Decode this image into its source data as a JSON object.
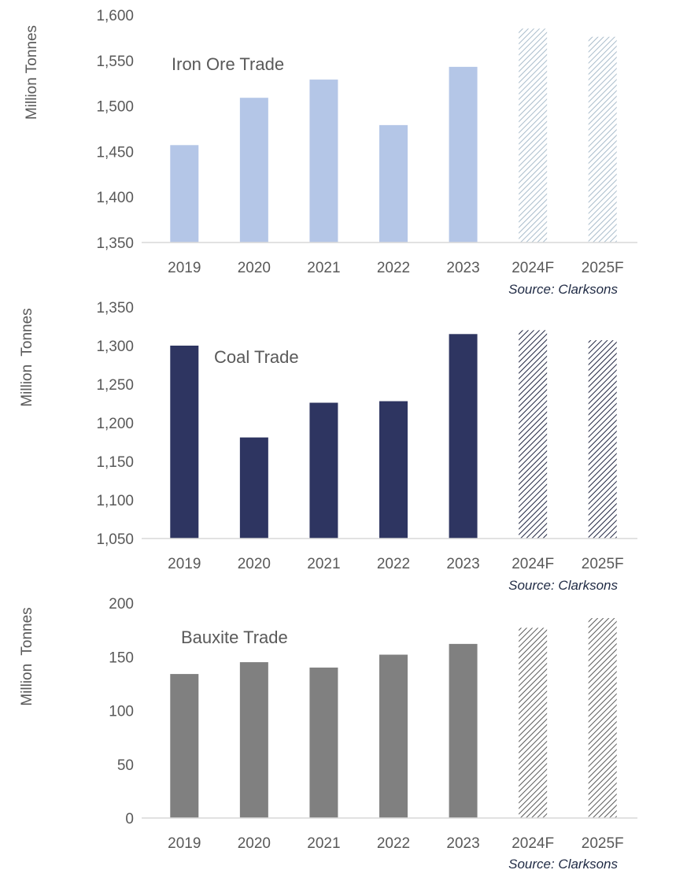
{
  "chart_data": [
    {
      "type": "bar",
      "title": "Iron Ore Trade",
      "ylabel": "Million Tonnes",
      "categories": [
        "2019",
        "2020",
        "2021",
        "2022",
        "2023",
        "2024F",
        "2025F"
      ],
      "values": [
        1457,
        1509,
        1529,
        1479,
        1543,
        1585,
        1576
      ],
      "forecast": [
        false,
        false,
        false,
        false,
        false,
        true,
        true
      ],
      "ylim": [
        1350,
        1600
      ],
      "yticks": [
        1350,
        1400,
        1450,
        1500,
        1550,
        1600
      ],
      "ytick_labels": [
        "1,350",
        "1,400",
        "1,450",
        "1,500",
        "1,550",
        "1,600"
      ],
      "source": "Source: Clarksons",
      "color": "#b4c6e7",
      "forecast_color": "#a9bccb",
      "grid": false,
      "legend": "none"
    },
    {
      "type": "bar",
      "title": "Coal Trade",
      "ylabel": "Million  Tonnes",
      "categories": [
        "2019",
        "2020",
        "2021",
        "2022",
        "2023",
        "2024F",
        "2025F"
      ],
      "values": [
        1300,
        1181,
        1226,
        1228,
        1315,
        1320,
        1307
      ],
      "forecast": [
        false,
        false,
        false,
        false,
        false,
        true,
        true
      ],
      "ylim": [
        1050,
        1350
      ],
      "yticks": [
        1050,
        1100,
        1150,
        1200,
        1250,
        1300,
        1350
      ],
      "ytick_labels": [
        "1,050",
        "1,100",
        "1,150",
        "1,200",
        "1,250",
        "1,300",
        "1,350"
      ],
      "source": "Source: Clarksons",
      "color": "#2e3561",
      "forecast_color": "#1f2440",
      "grid": false,
      "legend": "none"
    },
    {
      "type": "bar",
      "title": "Bauxite Trade",
      "ylabel": "Million  Tonnes",
      "categories": [
        "2019",
        "2020",
        "2021",
        "2022",
        "2023",
        "2024F",
        "2025F"
      ],
      "values": [
        134,
        145,
        140,
        152,
        162,
        177,
        186
      ],
      "forecast": [
        false,
        false,
        false,
        false,
        false,
        true,
        true
      ],
      "ylim": [
        0,
        200
      ],
      "yticks": [
        0,
        50,
        100,
        150,
        200
      ],
      "ytick_labels": [
        "0",
        "50",
        "100",
        "150",
        "200"
      ],
      "source": "Source: Clarksons",
      "color": "#808080",
      "forecast_color": "#595959",
      "grid": false,
      "legend": "none"
    }
  ]
}
